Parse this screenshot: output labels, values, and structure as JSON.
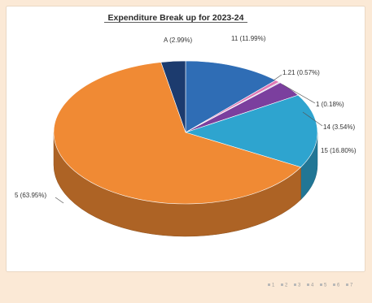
{
  "chart_data": {
    "type": "pie",
    "style": "3d",
    "title": "Expenditure Break up for 2023-24",
    "values": [
      11.99,
      0.57,
      0.18,
      3.54,
      16.8,
      63.95,
      2.99
    ],
    "labels": [
      "11 (11.99%)",
      "1.21 (0.57%)",
      "1 (0.18%)",
      "14 (3.54%)",
      "15 (16.80%)",
      "5 (63.95%)",
      "A (2.99%)"
    ],
    "colors": [
      "#2f6db5",
      "#e07ab5",
      "#c9bfe0",
      "#7b3f9e",
      "#2ea4cf",
      "#f08a34",
      "#1c3b6e"
    ],
    "start_angle_deg": 0,
    "direction": "clockwise",
    "legend": {
      "position": "bottom-right",
      "items": [
        "1",
        "2",
        "3",
        "4",
        "5",
        "6",
        "7"
      ]
    }
  }
}
